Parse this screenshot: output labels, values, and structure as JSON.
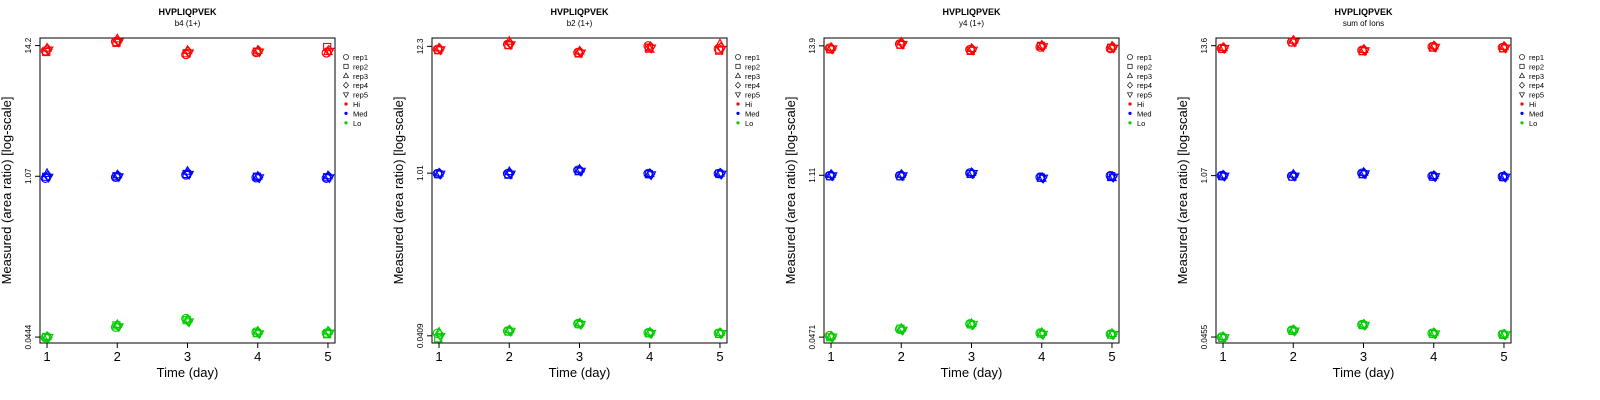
{
  "chart_data": [
    {
      "type": "scatter",
      "title": "HVPLIQPVEK",
      "subtitle": "b4 (1+)",
      "xlabel": "Time (day)",
      "ylabel": "Measured (area ratio) [log-scale]",
      "y_scale": "log",
      "x_ticks": [
        1,
        2,
        3,
        4,
        5
      ],
      "y_ticks": [
        {
          "value": 0.0444,
          "label": "0.0444"
        },
        {
          "value": 1.07,
          "label": "1.07"
        },
        {
          "value": 14.2,
          "label": "14.2"
        }
      ],
      "xlim": [
        0.9,
        5.1
      ],
      "ylim": [
        0.0395,
        16.5
      ],
      "legend_position": "right",
      "legend": [
        {
          "label": "rep1",
          "marker": "circle"
        },
        {
          "label": "rep2",
          "marker": "square"
        },
        {
          "label": "rep3",
          "marker": "triangle-up"
        },
        {
          "label": "rep4",
          "marker": "diamond"
        },
        {
          "label": "rep5",
          "marker": "triangle-down"
        },
        {
          "label": "Hi",
          "color": "#ff0000"
        },
        {
          "label": "Med",
          "color": "#0000ff"
        },
        {
          "label": "Lo",
          "color": "#00cc00"
        }
      ],
      "series": [
        {
          "name": "Hi",
          "color": "#ff0000",
          "reps": [
            [
              12.8,
              15.4,
              11.9,
              12.4,
              12.3
            ],
            [
              12.5,
              15.0,
              12.2,
              12.6,
              13.8
            ],
            [
              13.5,
              16.2,
              12.9,
              12.9,
              12.6
            ],
            [
              13.2,
              15.6,
              12.6,
              12.8,
              12.9
            ],
            [
              13.0,
              15.2,
              12.3,
              12.5,
              12.7
            ]
          ]
        },
        {
          "name": "Med",
          "color": "#0000ff",
          "reps": [
            [
              1.03,
              1.05,
              1.1,
              1.04,
              1.03
            ],
            [
              1.06,
              1.07,
              1.12,
              1.06,
              1.05
            ],
            [
              1.13,
              1.1,
              1.18,
              1.07,
              1.08
            ],
            [
              1.08,
              1.08,
              1.14,
              1.05,
              1.06
            ],
            [
              1.05,
              1.06,
              1.11,
              1.04,
              1.04
            ]
          ]
        },
        {
          "name": "Lo",
          "color": "#00cc00",
          "reps": [
            [
              0.044,
              0.054,
              0.064,
              0.049,
              0.048
            ],
            [
              0.0445,
              0.056,
              0.062,
              0.048,
              0.047
            ],
            [
              0.045,
              0.057,
              0.063,
              0.05,
              0.05
            ],
            [
              0.0442,
              0.0555,
              0.061,
              0.0485,
              0.049
            ],
            [
              0.044,
              0.0545,
              0.06,
              0.0475,
              0.048
            ]
          ]
        }
      ]
    },
    {
      "type": "scatter",
      "title": "HVPLIQPVEK",
      "subtitle": "b2 (1+)",
      "xlabel": "Time (day)",
      "ylabel": "Measured (area ratio) [log-scale]",
      "y_scale": "log",
      "x_ticks": [
        1,
        2,
        3,
        4,
        5
      ],
      "y_ticks": [
        {
          "value": 0.0409,
          "label": "0.0409"
        },
        {
          "value": 1.01,
          "label": "1.01"
        },
        {
          "value": 12.3,
          "label": "12.3"
        }
      ],
      "xlim": [
        0.9,
        5.1
      ],
      "ylim": [
        0.0355,
        14.5
      ],
      "legend_position": "right",
      "legend": [
        {
          "label": "rep1",
          "marker": "circle"
        },
        {
          "label": "rep2",
          "marker": "square"
        },
        {
          "label": "rep3",
          "marker": "triangle-up"
        },
        {
          "label": "rep4",
          "marker": "diamond"
        },
        {
          "label": "rep5",
          "marker": "triangle-down"
        },
        {
          "label": "Hi",
          "color": "#ff0000"
        },
        {
          "label": "Med",
          "color": "#0000ff"
        },
        {
          "label": "Lo",
          "color": "#00cc00"
        }
      ],
      "series": [
        {
          "name": "Hi",
          "color": "#ff0000",
          "reps": [
            [
              11.6,
              12.8,
              10.9,
              12.4,
              11.7
            ],
            [
              11.4,
              12.6,
              10.7,
              12.0,
              11.3
            ],
            [
              11.9,
              13.6,
              11.2,
              11.6,
              12.9
            ],
            [
              11.7,
              13.0,
              11.0,
              12.2,
              12.0
            ],
            [
              11.5,
              12.7,
              10.8,
              11.9,
              11.6
            ]
          ]
        },
        {
          "name": "Med",
          "color": "#0000ff",
          "reps": [
            [
              1.0,
              1.0,
              1.07,
              1.0,
              1.0
            ],
            [
              0.99,
              0.98,
              1.05,
              0.99,
              1.0
            ],
            [
              1.01,
              1.04,
              1.09,
              1.0,
              1.01
            ],
            [
              1.0,
              1.01,
              1.06,
              0.99,
              1.0
            ],
            [
              0.99,
              0.99,
              1.05,
              0.98,
              0.99
            ]
          ]
        },
        {
          "name": "Lo",
          "color": "#00cc00",
          "reps": [
            [
              0.043,
              0.045,
              0.052,
              0.0435,
              0.043
            ],
            [
              0.039,
              0.0445,
              0.0515,
              0.043,
              0.0425
            ],
            [
              0.044,
              0.046,
              0.0525,
              0.044,
              0.0435
            ],
            [
              0.042,
              0.0452,
              0.0518,
              0.0432,
              0.043
            ],
            [
              0.0405,
              0.0448,
              0.0512,
              0.0428,
              0.0428
            ]
          ]
        }
      ]
    },
    {
      "type": "scatter",
      "title": "HVPLIQPVEK",
      "subtitle": "y4 (1+)",
      "xlabel": "Time (day)",
      "ylabel": "Measured (area ratio) [log-scale]",
      "y_scale": "log",
      "x_ticks": [
        1,
        2,
        3,
        4,
        5
      ],
      "y_ticks": [
        {
          "value": 0.0471,
          "label": "0.0471"
        },
        {
          "value": 1.11,
          "label": "1.11"
        },
        {
          "value": 13.9,
          "label": "13.9"
        }
      ],
      "xlim": [
        0.9,
        5.1
      ],
      "ylim": [
        0.042,
        16.2
      ],
      "legend_position": "right",
      "legend": [
        {
          "label": "rep1",
          "marker": "circle"
        },
        {
          "label": "rep2",
          "marker": "square"
        },
        {
          "label": "rep3",
          "marker": "triangle-up"
        },
        {
          "label": "rep4",
          "marker": "diamond"
        },
        {
          "label": "rep5",
          "marker": "triangle-down"
        },
        {
          "label": "Hi",
          "color": "#ff0000"
        },
        {
          "label": "Med",
          "color": "#0000ff"
        },
        {
          "label": "Lo",
          "color": "#00cc00"
        }
      ],
      "series": [
        {
          "name": "Hi",
          "color": "#ff0000",
          "reps": [
            [
              13.3,
              14.4,
              12.9,
              13.6,
              13.2
            ],
            [
              13.0,
              14.2,
              12.6,
              13.9,
              13.4
            ],
            [
              13.5,
              15.0,
              13.2,
              14.1,
              13.8
            ],
            [
              13.2,
              14.6,
              13.0,
              13.8,
              13.6
            ],
            [
              13.1,
              14.3,
              12.8,
              13.7,
              13.3
            ]
          ]
        },
        {
          "name": "Med",
          "color": "#0000ff",
          "reps": [
            [
              1.1,
              1.1,
              1.16,
              1.07,
              1.1
            ],
            [
              1.09,
              1.09,
              1.14,
              1.06,
              1.09
            ],
            [
              1.13,
              1.13,
              1.17,
              1.05,
              1.06
            ],
            [
              1.11,
              1.11,
              1.15,
              1.06,
              1.08
            ],
            [
              1.1,
              1.1,
              1.15,
              1.05,
              1.07
            ]
          ]
        },
        {
          "name": "Lo",
          "color": "#00cc00",
          "reps": [
            [
              0.0485,
              0.055,
              0.061,
              0.051,
              0.05
            ],
            [
              0.047,
              0.0555,
              0.0605,
              0.0505,
              0.0495
            ],
            [
              0.048,
              0.056,
              0.0615,
              0.0515,
              0.0505
            ],
            [
              0.0475,
              0.0545,
              0.06,
              0.05,
              0.0498
            ],
            [
              0.0472,
              0.054,
              0.0602,
              0.0498,
              0.0496
            ]
          ]
        }
      ]
    },
    {
      "type": "scatter",
      "title": "HVPLIQPVEK",
      "subtitle": "sum of Ions",
      "xlabel": "Time (day)",
      "ylabel": "Measured (area ratio) [log-scale]",
      "y_scale": "log",
      "x_ticks": [
        1,
        2,
        3,
        4,
        5
      ],
      "y_ticks": [
        {
          "value": 0.0455,
          "label": "0.0455"
        },
        {
          "value": 1.07,
          "label": "1.07"
        },
        {
          "value": 13.6,
          "label": "13.6"
        }
      ],
      "xlim": [
        0.9,
        5.1
      ],
      "ylim": [
        0.0405,
        15.8
      ],
      "legend_position": "right",
      "legend": [
        {
          "label": "rep1",
          "marker": "circle"
        },
        {
          "label": "rep2",
          "marker": "square"
        },
        {
          "label": "rep3",
          "marker": "triangle-up"
        },
        {
          "label": "rep4",
          "marker": "diamond"
        },
        {
          "label": "rep5",
          "marker": "triangle-down"
        },
        {
          "label": "Hi",
          "color": "#ff0000"
        },
        {
          "label": "Med",
          "color": "#0000ff"
        },
        {
          "label": "Lo",
          "color": "#00cc00"
        }
      ],
      "series": [
        {
          "name": "Hi",
          "color": "#ff0000",
          "reps": [
            [
              12.9,
              14.6,
              12.4,
              13.3,
              13.1
            ],
            [
              12.8,
              14.5,
              12.2,
              13.1,
              12.9
            ],
            [
              13.1,
              15.1,
              12.6,
              13.5,
              13.4
            ],
            [
              13.0,
              14.8,
              12.5,
              13.4,
              13.2
            ],
            [
              12.9,
              14.6,
              12.3,
              13.2,
              13.0
            ]
          ]
        },
        {
          "name": "Med",
          "color": "#0000ff",
          "reps": [
            [
              1.07,
              1.06,
              1.12,
              1.06,
              1.05
            ],
            [
              1.06,
              1.05,
              1.1,
              1.05,
              1.04
            ],
            [
              1.08,
              1.1,
              1.14,
              1.07,
              1.06
            ],
            [
              1.07,
              1.07,
              1.12,
              1.06,
              1.05
            ],
            [
              1.06,
              1.06,
              1.11,
              1.05,
              1.04
            ]
          ]
        },
        {
          "name": "Lo",
          "color": "#00cc00",
          "reps": [
            [
              0.0455,
              0.052,
              0.058,
              0.049,
              0.048
            ],
            [
              0.0448,
              0.0515,
              0.0575,
              0.0485,
              0.0475
            ],
            [
              0.046,
              0.0525,
              0.0585,
              0.0495,
              0.0482
            ],
            [
              0.0452,
              0.0518,
              0.0578,
              0.0488,
              0.0478
            ],
            [
              0.045,
              0.0512,
              0.0574,
              0.0484,
              0.0476
            ]
          ]
        }
      ]
    }
  ]
}
